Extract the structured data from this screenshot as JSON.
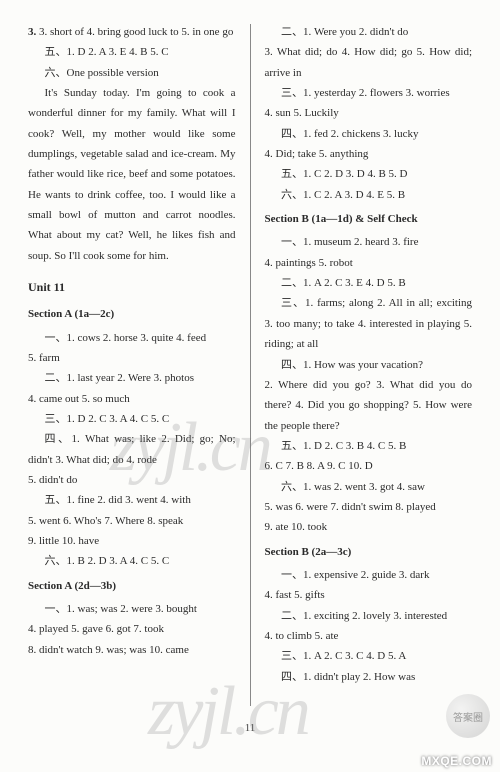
{
  "left": {
    "l1": "3. short of  4. bring good luck to  5. in one go",
    "l2": "五、1. D  2. A  3. E  4. B  5. C",
    "l3": "六、One possible version",
    "l4": "It's Sunday today. I'm going to cook a wonderful dinner for my family. What will I cook? Well, my mother would like some dumplings, vegetable salad and ice-cream. My father would like rice, beef and some potatoes. He wants to drink coffee, too. I would like a small bowl of mutton and carrot noodles. What about my cat? Well, he likes fish and soup. So I'll cook some for him.",
    "unit": "Unit 11",
    "secA1": "Section A (1a—2c)",
    "a1": "一、1. cows  2. horse  3. quite  4. feed",
    "a2": "5. farm",
    "a3": "二、1. last year  2. Were  3. photos",
    "a4": "4. came out  5. so much",
    "a5": "三、1. D  2. C  3. A  4. C  5. C",
    "a6": "四、1. What was; like  2. Did; go; No; didn't  3. What did; do  4. rode",
    "a7": "5. didn't do",
    "a8": "五、1. fine  2. did  3. went  4. with",
    "a9": "5. went  6. Who's  7. Where  8. speak",
    "a10": "9. little  10. have",
    "a11": "六、1. B  2. D  3. A  4. C  5. C",
    "secA2": "Section A (2d—3b)",
    "b1": "一、1. was; was  2. were  3. bought",
    "b2": "4. played  5. gave  6. got  7. took",
    "b3": "8. didn't watch  9. was; was  10. came"
  },
  "right": {
    "r1": "二、1. Were you  2. didn't do",
    "r2": "3. What did; do  4. How did; go  5. How did; arrive in",
    "r3": "三、1. yesterday  2. flowers  3. worries",
    "r4": "4. sun  5. Luckily",
    "r5": "四、1. fed  2. chickens  3. lucky",
    "r6": "4. Did; take  5. anything",
    "r7": "五、1. C  2. D  3. D  4. B  5. D",
    "r8": "六、1. C  2. A  3. D  4. E  5. B",
    "secB1": "Section B (1a—1d) & Self Check",
    "c1": "一、1. museum  2. heard  3. fire",
    "c2": "4. paintings  5. robot",
    "c3": "二、1. A  2. C  3. E  4. D  5. B",
    "c4": "三、1. farms; along  2. All in all; exciting  3. too many; to take  4. interested in playing  5. riding; at all",
    "c5": "四、1. How was your vacation?",
    "c6": "2. Where did you go?  3. What did you do there?  4. Did you go shopping?  5. How were the people there?",
    "c7": "五、1. D  2. C  3. B  4. C  5. B",
    "c8": "6. C  7. B  8. A  9. C  10. D",
    "c9": "六、1. was  2. went  3. got  4. saw",
    "c10": "5. was  6. were  7. didn't swim  8. played",
    "c11": "9. ate  10. took",
    "secB2": "Section B (2a—3c)",
    "d1": "一、1. expensive  2. guide  3. dark",
    "d2": "4. fast  5. gifts",
    "d3": "二、1. exciting  2. lovely  3. interested",
    "d4": "4. to climb  5. ate",
    "d5": "三、1. A  2. C  3. C  4. D  5. A",
    "d6": "四、1. didn't play  2. How was"
  },
  "page_number": "11",
  "wm_text": "zyjl.cn",
  "mxqe": "MXQE.COM",
  "corner": "答案圈"
}
